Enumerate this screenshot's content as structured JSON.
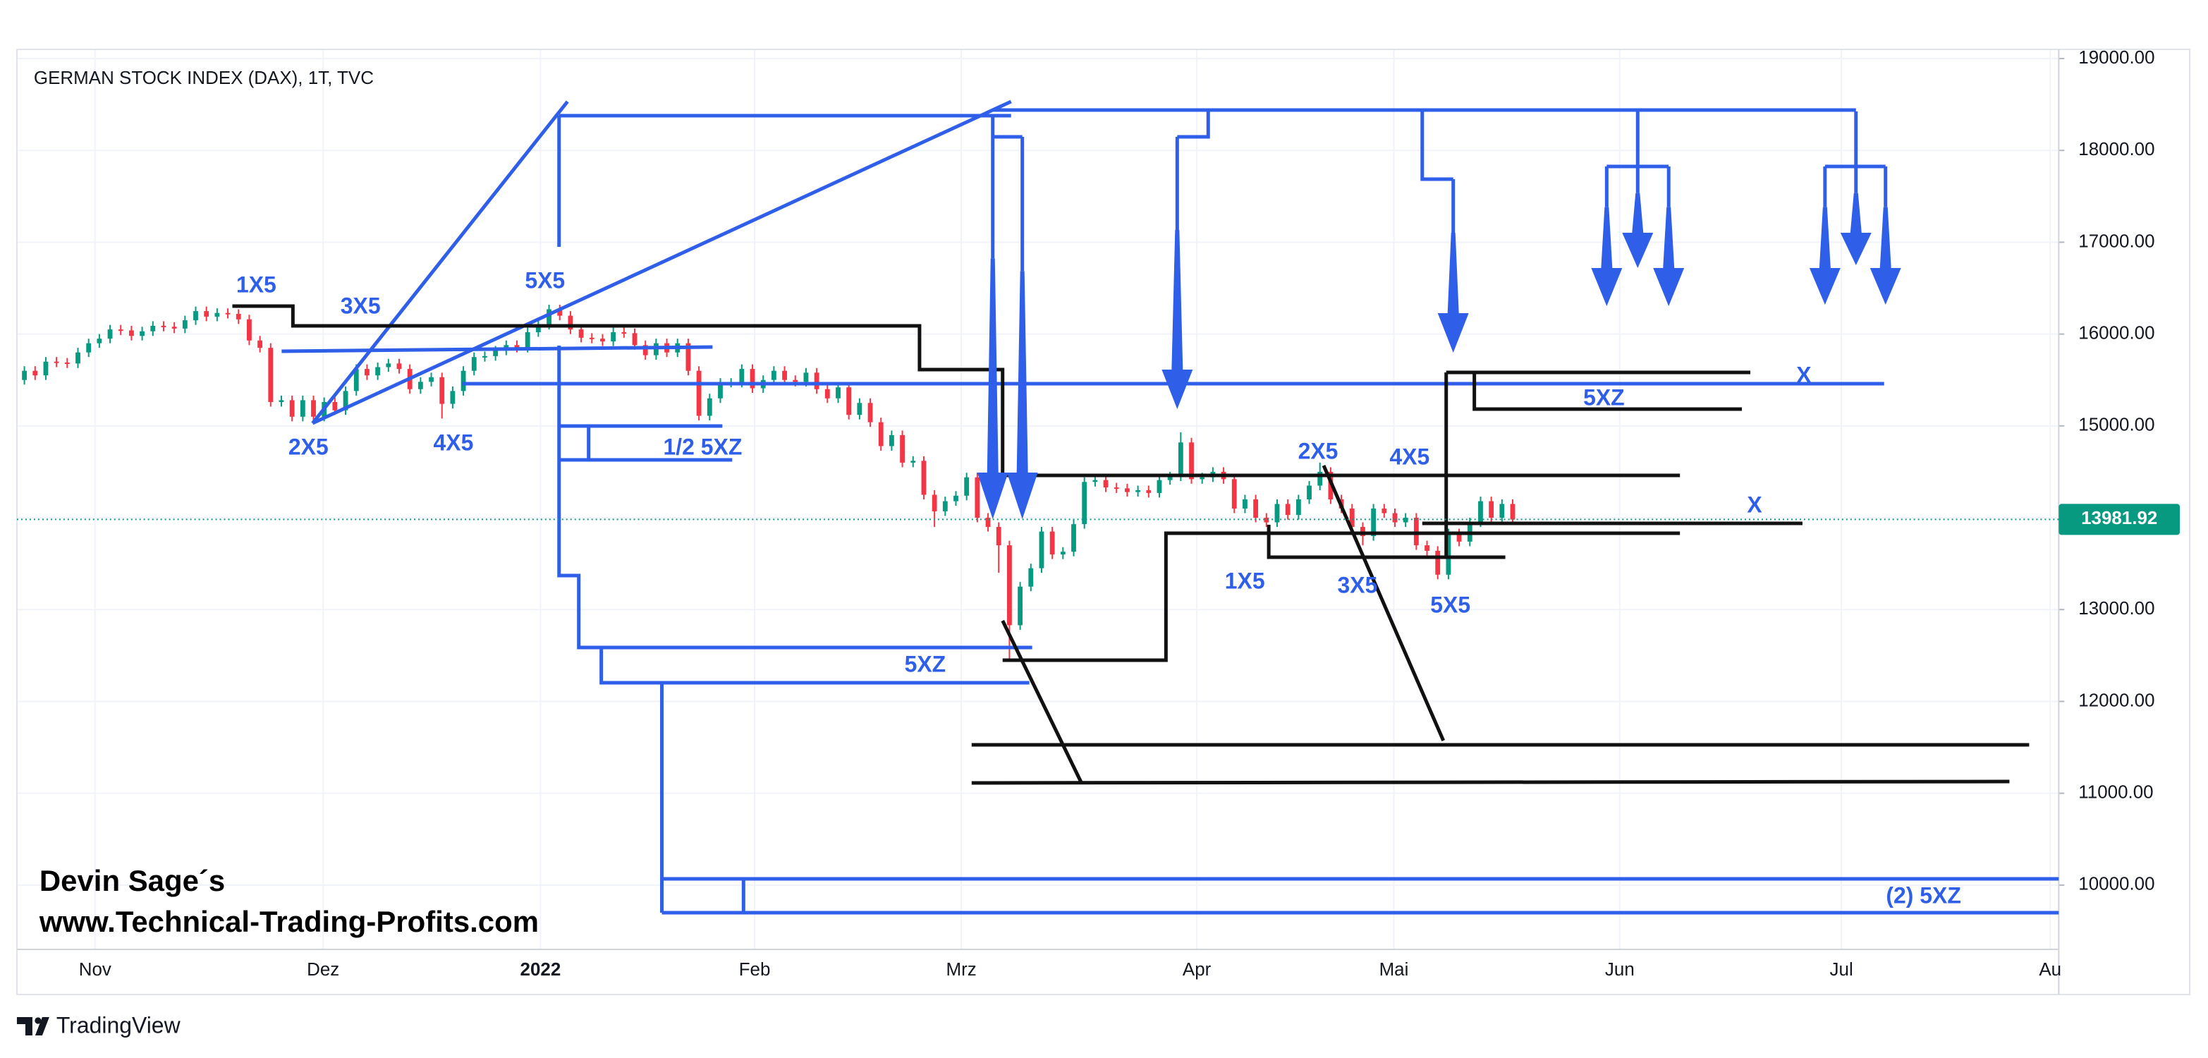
{
  "chart_data": {
    "type": "candlestick",
    "title": "GERMAN STOCK INDEX (DAX), 1T, TVC",
    "xlim": [
      -0.7,
      190
    ],
    "xticks": [
      {
        "value": 6.6,
        "label": "Nov"
      },
      {
        "value": 27.9,
        "label": "Dez"
      },
      {
        "value": 48.2,
        "label": "2022"
      },
      {
        "value": 68.2,
        "label": "Feb"
      },
      {
        "value": 87.5,
        "label": "Mrz"
      },
      {
        "value": 109.5,
        "label": "Apr"
      },
      {
        "value": 127.9,
        "label": "Mai"
      },
      {
        "value": 149,
        "label": "Jun"
      },
      {
        "value": 169.7,
        "label": "Jul"
      },
      {
        "value": 189.2,
        "label": "Au"
      }
    ],
    "ylim": [
      9300,
      19100
    ],
    "yticks": [
      {
        "value": 10000,
        "label": "10000.00"
      },
      {
        "value": 11000,
        "label": "11000.00"
      },
      {
        "value": 12000,
        "label": "12000.00"
      },
      {
        "value": 13000,
        "label": "13000.00"
      },
      {
        "value": 14000,
        "label": "14000.00"
      },
      {
        "value": 15000,
        "label": "15000.00"
      },
      {
        "value": 16000,
        "label": "16000.00"
      },
      {
        "value": 17000,
        "label": "17000.00"
      },
      {
        "value": 18000,
        "label": "18000.00"
      },
      {
        "value": 19000,
        "label": "19000.00"
      }
    ],
    "grid": true,
    "up_color": "#089981",
    "down_color": "#f23645",
    "open": [
      15500,
      15600,
      15550,
      15700,
      15690,
      15680,
      15800,
      15900,
      15950,
      16050,
      16040,
      15980,
      16030,
      16090,
      16080,
      16060,
      16150,
      16250,
      16190,
      16230,
      16220,
      16160,
      15930,
      15850,
      15260,
      15280,
      15100,
      15280,
      15100,
      15260,
      15170,
      15380,
      15620,
      15550,
      15640,
      15680,
      15620,
      15400,
      15480,
      15530,
      15240,
      15380,
      15600,
      15750,
      15760,
      15820,
      15880,
      15850,
      16020,
      16100,
      16270,
      16200,
      16050,
      15960,
      15950,
      15920,
      16020,
      16010,
      15880,
      15770,
      15900,
      15800,
      15900,
      15600,
      15110,
      15300,
      15470,
      15470,
      15620,
      15410,
      15500,
      15600,
      15500,
      15480,
      15580,
      15400,
      15300,
      15420,
      15120,
      15250,
      15040,
      14780,
      14900,
      14600,
      14620,
      14250,
      14070,
      14180,
      14240,
      14440,
      14000,
      13900,
      13700,
      12830,
      13250,
      13450,
      13850,
      13600,
      13630,
      13930,
      14390,
      14410,
      14330,
      14320,
      14280,
      14300,
      14270,
      14410,
      14450,
      14820,
      14420,
      14440,
      14500,
      14420,
      14100,
      14200,
      14000,
      13950,
      14150,
      14030,
      14200,
      14350,
      14500,
      14200,
      14100,
      13900,
      13800,
      14100,
      14050,
      13950,
      14000,
      13700,
      13640,
      13380,
      13830,
      13740,
      13950,
      14180,
      14000,
      14150
    ],
    "high": [
      15650,
      15650,
      15750,
      15750,
      15740,
      15850,
      15950,
      16000,
      16100,
      16100,
      16090,
      16080,
      16140,
      16140,
      16130,
      16200,
      16300,
      16300,
      16280,
      16280,
      16270,
      16210,
      15980,
      15900,
      15330,
      15330,
      15330,
      15330,
      15310,
      15310,
      15430,
      15670,
      15670,
      15690,
      15730,
      15730,
      15670,
      15530,
      15580,
      15580,
      15430,
      15650,
      15800,
      15810,
      15870,
      15930,
      15930,
      16070,
      16150,
      16320,
      16320,
      16250,
      16100,
      16010,
      16000,
      16070,
      16070,
      16060,
      15930,
      15950,
      15950,
      15950,
      15950,
      15650,
      15350,
      15520,
      15520,
      15670,
      15670,
      15550,
      15650,
      15650,
      15550,
      15630,
      15630,
      15450,
      15470,
      15470,
      15300,
      15300,
      15090,
      14950,
      14950,
      14670,
      14670,
      14300,
      14230,
      14290,
      14490,
      14490,
      14050,
      13950,
      13750,
      13300,
      13500,
      13900,
      13900,
      13680,
      13980,
      14440,
      14460,
      14460,
      14380,
      14370,
      14350,
      14350,
      14460,
      14500,
      14930,
      14870,
      14490,
      14550,
      14550,
      14470,
      14250,
      14250,
      14050,
      14200,
      14200,
      14250,
      14400,
      14600,
      14550,
      14250,
      14150,
      13950,
      14150,
      14150,
      14100,
      14050,
      14050,
      13750,
      13690,
      13880,
      13880,
      14000,
      14230,
      14230,
      14200,
      14200
    ],
    "low": [
      15450,
      15500,
      15500,
      15640,
      15630,
      15630,
      15750,
      15850,
      15900,
      15990,
      15930,
      15930,
      15980,
      16030,
      16010,
      16010,
      16100,
      16140,
      16140,
      16170,
      16110,
      15880,
      15800,
      15210,
      15210,
      15050,
      15050,
      15050,
      15050,
      15120,
      15120,
      15330,
      15500,
      15500,
      15590,
      15570,
      15350,
      15350,
      15430,
      15080,
      15190,
      15330,
      15550,
      15700,
      15710,
      15770,
      15800,
      15800,
      15970,
      16050,
      16150,
      16000,
      15910,
      15900,
      15870,
      15870,
      15960,
      15830,
      15720,
      15720,
      15750,
      15750,
      15550,
      15060,
      15060,
      15250,
      15420,
      15420,
      15360,
      15360,
      15450,
      15450,
      15430,
      15430,
      15350,
      15250,
      15250,
      15070,
      15070,
      14990,
      14730,
      14730,
      14550,
      14550,
      14200,
      13900,
      14020,
      14130,
      14190,
      13950,
      13850,
      13400,
      12440,
      12780,
      13200,
      13400,
      13550,
      13550,
      13580,
      13880,
      14340,
      14280,
      14270,
      14230,
      14230,
      14220,
      14220,
      14360,
      14400,
      14370,
      14370,
      14390,
      14370,
      14050,
      14050,
      13950,
      13900,
      13900,
      13980,
      13980,
      14150,
      14300,
      14150,
      14050,
      13850,
      13700,
      13750,
      14000,
      13900,
      13900,
      13650,
      13590,
      13330,
      13330,
      13690,
      13690,
      13900,
      13950,
      13950,
      13930
    ],
    "close": [
      15600,
      15550,
      15700,
      15690,
      15680,
      15800,
      15900,
      15950,
      16050,
      16040,
      15980,
      16030,
      16090,
      16080,
      16060,
      16150,
      16250,
      16190,
      16230,
      16220,
      16160,
      15930,
      15850,
      15260,
      15280,
      15100,
      15280,
      15100,
      15260,
      15170,
      15380,
      15620,
      15550,
      15640,
      15680,
      15620,
      15400,
      15480,
      15530,
      15240,
      15380,
      15600,
      15750,
      15760,
      15820,
      15880,
      15850,
      16020,
      16100,
      16270,
      16200,
      16050,
      15960,
      15950,
      15920,
      16020,
      16010,
      15880,
      15770,
      15900,
      15800,
      15900,
      15600,
      15110,
      15300,
      15470,
      15470,
      15620,
      15410,
      15500,
      15600,
      15500,
      15480,
      15580,
      15400,
      15300,
      15420,
      15120,
      15250,
      15040,
      14780,
      14900,
      14600,
      14620,
      14250,
      14070,
      14180,
      14240,
      14440,
      14000,
      13900,
      13700,
      12830,
      13250,
      13450,
      13850,
      13600,
      13630,
      13930,
      14390,
      14410,
      14330,
      14320,
      14280,
      14300,
      14270,
      14410,
      14450,
      14820,
      14420,
      14440,
      14500,
      14420,
      14100,
      14200,
      14000,
      13950,
      14150,
      14030,
      14200,
      14350,
      14500,
      14200,
      14100,
      13900,
      13800,
      14100,
      14050,
      13950,
      14000,
      13700,
      13640,
      13380,
      13830,
      13740,
      13950,
      14180,
      14000,
      14150,
      13980
    ],
    "last_price": 13981.92,
    "last_price_color": "#089981",
    "annotations": [
      "1X5",
      "3X5",
      "5X5",
      "2X5",
      "4X5",
      "1/2 5XZ",
      "5XZ",
      "5XZ",
      "X",
      "X",
      "2X5",
      "4X5",
      "1X5",
      "3X5",
      "5X5",
      "(2) 5XZ"
    ],
    "watermark": [
      "Devin Sage´s",
      "www.Technical-Trading-Profits.com"
    ]
  },
  "footer": {
    "brand": "TradingView"
  }
}
